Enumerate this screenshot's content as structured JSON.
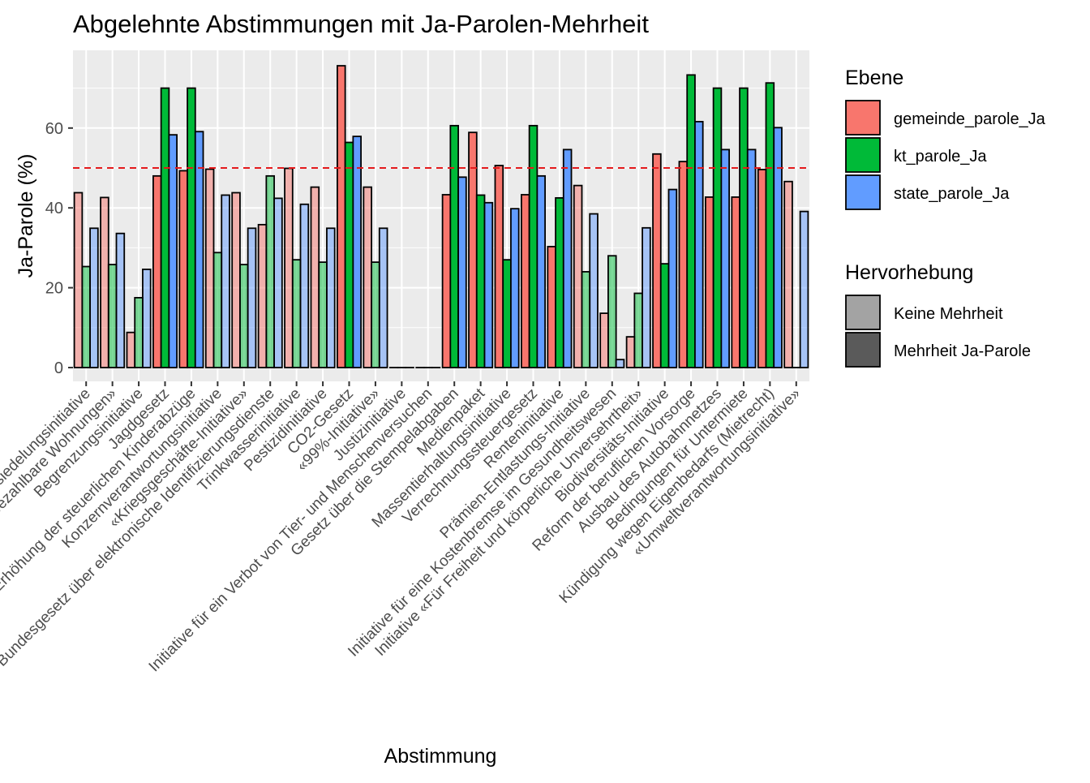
{
  "colors": {
    "gemeinde": "#F8766D",
    "kanton": "#00BA38",
    "state": "#619CFF",
    "panel": "#EBEBEB",
    "grid": "#FFFFFF",
    "threshold": "#E41A1C",
    "legend_keine": "#A3A3A3",
    "legend_mehrheit": "#5A5A5A"
  },
  "chart_data": {
    "type": "bar",
    "title": "Abgelehnte Abstimmungen mit Ja-Parolen-Mehrheit",
    "xlabel": "Abstimmung",
    "ylabel": "Ja-Parole (%)",
    "ylim": [
      0,
      76
    ],
    "yticks": [
      0,
      20,
      40,
      60
    ],
    "grid": true,
    "threshold": 50,
    "legend_position": "right",
    "legends": {
      "fill": {
        "title": "Ebene",
        "entries": [
          "gemeinde_parole_Ja",
          "kt_parole_Ja",
          "state_parole_Ja"
        ]
      },
      "alpha": {
        "title": "Hervorhebung",
        "entries": [
          "Keine Mehrheit",
          "Mehrheit Ja-Parole"
        ]
      }
    },
    "categories": [
      "Zersiedelungsinitiative",
      "Initiative «Mehr bezahlbare Wohnungen»",
      "Begrenzungsinitiative",
      "Jagdgesetz",
      "Erhöhung der steuerlichen Kinderabzüge",
      "Konzernverantwortungsinitiative",
      "«Kriegsgeschäfte-Initiative»",
      "Bundesgesetz über elektronische Identifizierungsdienste",
      "Trinkwasserinitiative",
      "Pestizidinitiative",
      "CO2-Gesetz",
      "«99%-Initiative»",
      "Justizinitiative",
      "Initiative für ein Verbot von Tier- und Menschenversuchen",
      "Gesetz über die Stempelabgaben",
      "Medienpaket",
      "Massentierhaltungsinitiative",
      "Verrechnungssteuergesetz",
      "Renteninitiative",
      "Prämien-Entlastungs-Initiative",
      "Initiative für eine Kostenbremse im Gesundheitswesen",
      "Initiative «Für Freiheit und körperliche Unversehrtheit»",
      "Biodiversitäts-Initiative",
      "Reform der beruflichen Vorsorge",
      "Ausbau des Autobahnnetzes",
      "Bedingungen für Untermiete",
      "Kündigung wegen Eigenbedarfs (Mietrecht)",
      "«Umweltverantwortungsinitiative»"
    ],
    "highlight": [
      false,
      false,
      false,
      true,
      true,
      false,
      false,
      false,
      false,
      false,
      true,
      false,
      false,
      false,
      true,
      true,
      true,
      true,
      true,
      false,
      false,
      false,
      true,
      true,
      true,
      true,
      true,
      false
    ],
    "series": [
      {
        "name": "gemeinde_parole_Ja",
        "values": [
          43.8,
          42.6,
          8.8,
          48.0,
          49.3,
          49.7,
          43.8,
          35.8,
          49.9,
          45.2,
          75.6,
          45.2,
          0,
          0,
          43.3,
          58.9,
          50.6,
          43.3,
          30.3,
          45.6,
          13.6,
          7.7,
          53.5,
          51.6,
          42.7,
          42.7,
          49.6,
          46.6
        ]
      },
      {
        "name": "kt_parole_Ja",
        "values": [
          25.3,
          25.8,
          17.5,
          70.0,
          70.0,
          28.8,
          25.8,
          48.0,
          27.0,
          26.4,
          56.4,
          26.4,
          0,
          0,
          60.6,
          43.2,
          27.0,
          60.6,
          42.5,
          24.0,
          28.0,
          18.6,
          26.0,
          73.3,
          70.0,
          70.0,
          71.3,
          0
        ]
      },
      {
        "name": "state_parole_Ja",
        "values": [
          34.9,
          33.6,
          24.6,
          58.3,
          59.1,
          43.2,
          34.9,
          42.4,
          40.9,
          34.9,
          57.9,
          34.9,
          0,
          0,
          47.7,
          41.3,
          39.8,
          48.0,
          54.6,
          38.5,
          2.0,
          35.0,
          44.6,
          61.6,
          54.6,
          54.6,
          60.1,
          39.1
        ]
      }
    ]
  }
}
